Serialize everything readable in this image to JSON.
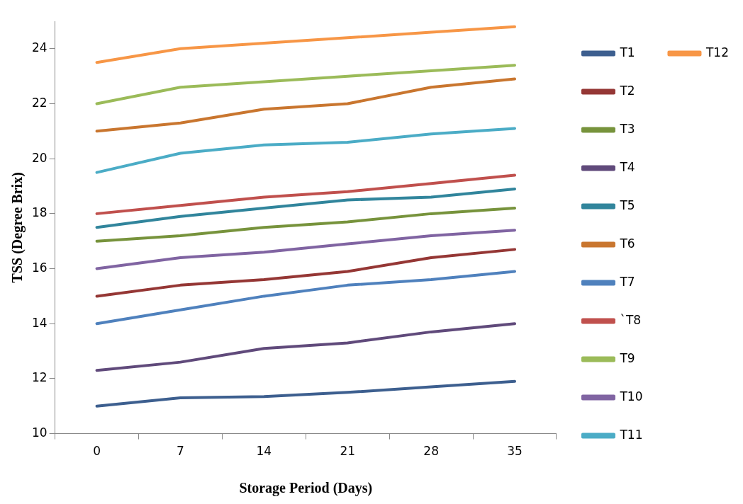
{
  "chart_data": {
    "type": "line",
    "xlabel": "Storage Period (Days)",
    "ylabel": "TSS (Degree Brix)",
    "categories": [
      "0",
      "7",
      "14",
      "21",
      "28",
      "35"
    ],
    "ylim": [
      10,
      25
    ],
    "yticks": [
      10,
      12,
      14,
      16,
      18,
      20,
      22,
      24
    ],
    "grid": false,
    "legend": "right",
    "marker": "none",
    "line_style": "solid",
    "series": [
      {
        "name": "T1",
        "color": "#3d5f8f",
        "values": [
          11.0,
          11.3,
          11.35,
          11.5,
          11.7,
          11.9
        ]
      },
      {
        "name": "T2",
        "color": "#953735",
        "values": [
          15.0,
          15.4,
          15.6,
          15.9,
          16.4,
          16.7
        ]
      },
      {
        "name": "T3",
        "color": "#77933c",
        "values": [
          17.0,
          17.2,
          17.5,
          17.7,
          18.0,
          18.2
        ]
      },
      {
        "name": "T4",
        "color": "#604a7b",
        "values": [
          12.3,
          12.6,
          13.1,
          13.3,
          13.7,
          14.0
        ]
      },
      {
        "name": "T5",
        "color": "#31859c",
        "values": [
          17.5,
          17.9,
          18.2,
          18.5,
          18.6,
          18.9
        ]
      },
      {
        "name": "T6",
        "color": "#c9762f",
        "values": [
          21.0,
          21.3,
          21.8,
          22.0,
          22.6,
          22.9
        ]
      },
      {
        "name": "T7",
        "color": "#4f81bd",
        "values": [
          14.0,
          14.5,
          15.0,
          15.4,
          15.6,
          15.9
        ]
      },
      {
        "name": "`T8",
        "color": "#c0504d",
        "values": [
          18.0,
          18.3,
          18.6,
          18.8,
          19.1,
          19.4
        ]
      },
      {
        "name": "T9",
        "color": "#9bbb59",
        "values": [
          22.0,
          22.6,
          22.8,
          23.0,
          23.2,
          23.4
        ]
      },
      {
        "name": "T10",
        "color": "#8064a2",
        "values": [
          16.0,
          16.4,
          16.6,
          16.9,
          17.2,
          17.4
        ]
      },
      {
        "name": "T11",
        "color": "#4bacc6",
        "values": [
          19.5,
          20.2,
          20.5,
          20.6,
          20.9,
          21.1
        ]
      },
      {
        "name": "T12",
        "color": "#f79646",
        "values": [
          23.5,
          24.0,
          24.2,
          24.4,
          24.6,
          24.8
        ]
      }
    ]
  }
}
